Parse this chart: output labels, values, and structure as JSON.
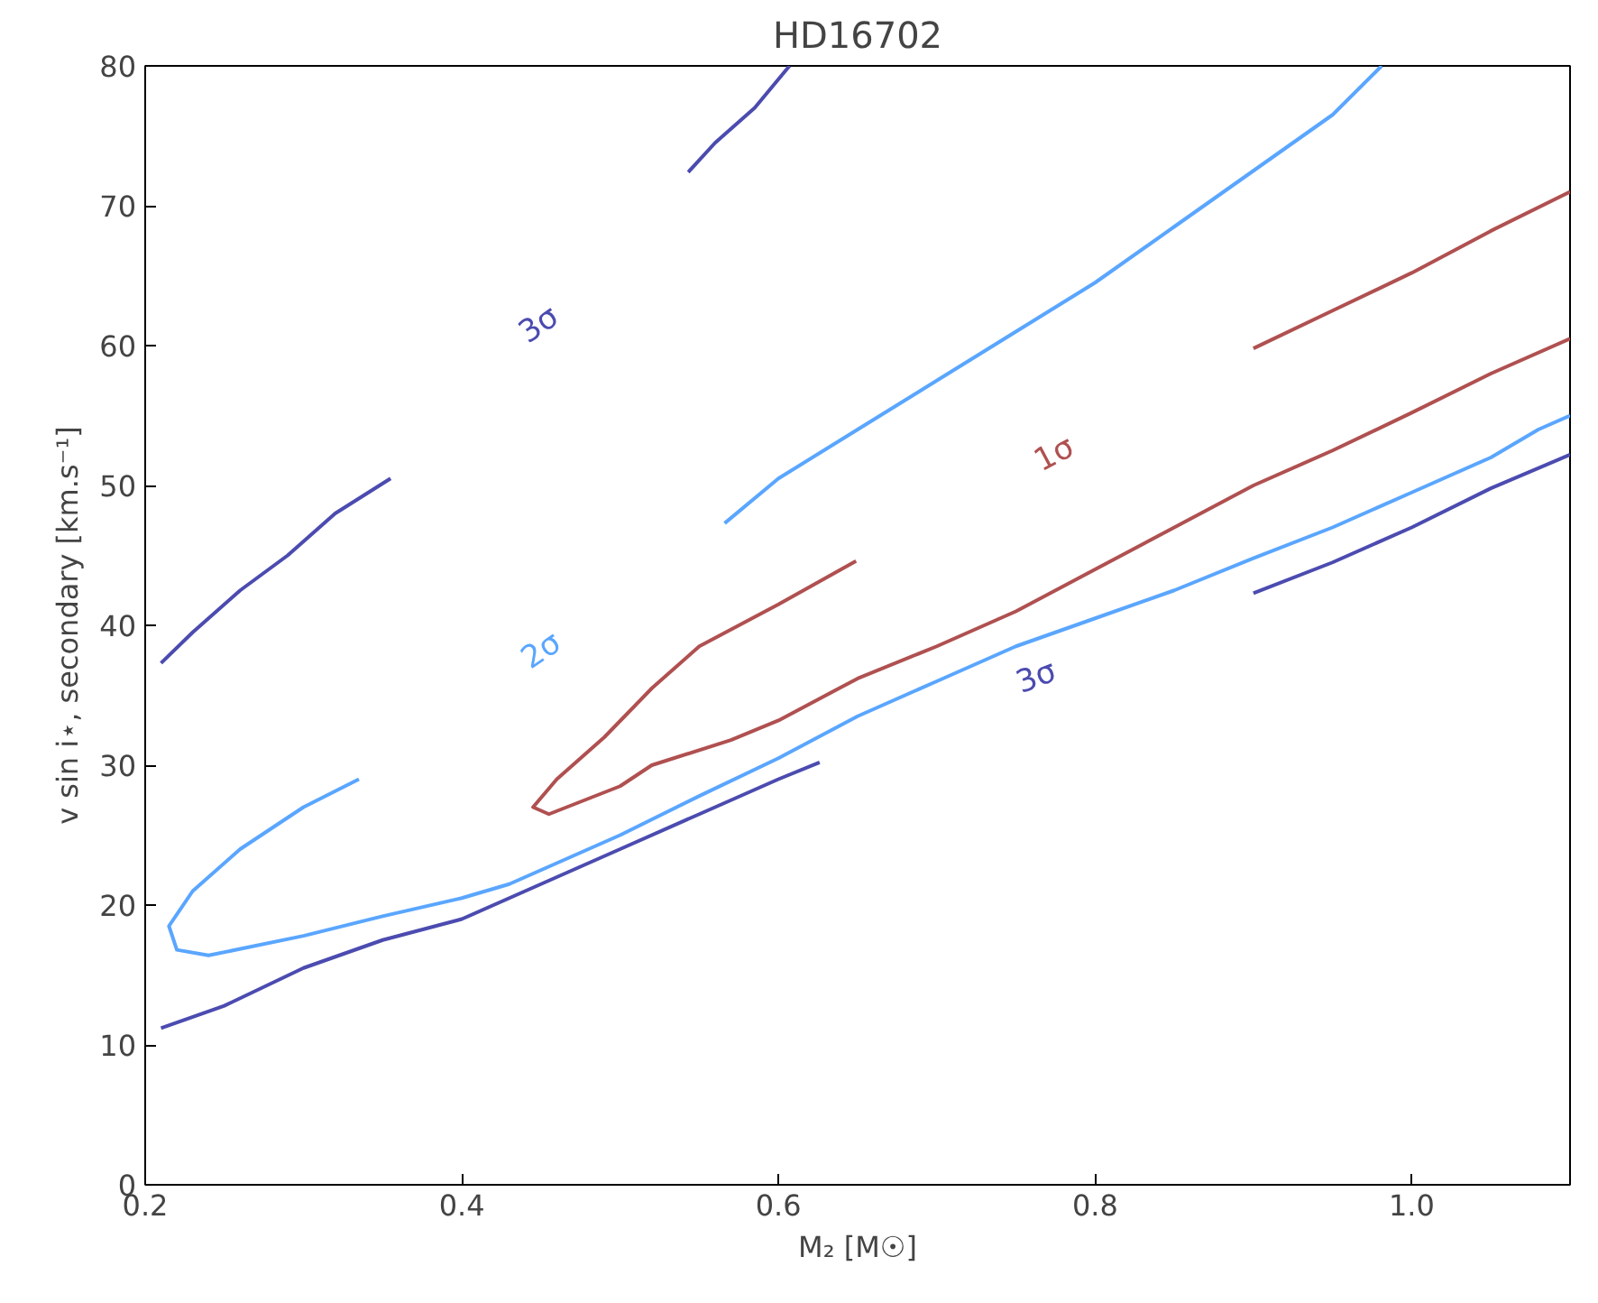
{
  "chart_data": {
    "type": "line",
    "title": "HD16702",
    "xlabel": "M₂ [M☉]",
    "ylabel": "v sin i⋆, secondary [km.s⁻¹]",
    "xlim": [
      0.2,
      1.1
    ],
    "ylim": [
      0,
      80
    ],
    "xticks": [
      0.2,
      0.4,
      0.6,
      {
        "value": 1.0,
        "label": "1.0"
      },
      0.8
    ],
    "yticks": [
      0,
      10,
      20,
      30,
      40,
      50,
      60,
      70,
      80
    ],
    "grid": false,
    "legend": false,
    "marker": "none",
    "line_style": "solid",
    "series": [
      {
        "name": "3σ",
        "color": "#4b4bb0",
        "x": [
          0.21,
          0.23,
          0.26,
          0.29,
          0.32,
          0.355,
          null,
          0.543,
          0.56,
          0.585,
          0.607,
          null,
          0.21,
          0.25,
          0.3,
          0.35,
          0.4,
          0.45,
          0.5,
          0.55,
          0.6,
          0.626,
          null,
          0.9,
          0.95,
          1.0,
          1.05,
          1.1
        ],
        "values": [
          37.3,
          39.5,
          42.5,
          45,
          48,
          50.5,
          null,
          72.4,
          74.5,
          77,
          80,
          null,
          11.2,
          12.8,
          15.5,
          17.5,
          19,
          21.5,
          24,
          26.5,
          29,
          30.2,
          null,
          42.3,
          44.5,
          47,
          49.8,
          52.2
        ]
      },
      {
        "name": "2σ",
        "color": "#5aa6ff",
        "x": [
          0.981,
          0.95,
          0.9,
          0.85,
          0.8,
          0.75,
          0.7,
          0.65,
          0.6,
          0.566,
          null,
          0.335,
          0.3,
          0.26,
          0.23,
          0.215,
          0.22,
          0.24,
          0.3,
          0.35,
          0.4,
          0.43,
          0.5,
          0.55,
          0.6,
          0.65,
          0.7,
          0.75,
          0.8,
          0.85,
          0.9,
          0.95,
          1.0,
          1.05,
          1.08,
          1.1
        ],
        "values": [
          80,
          76.5,
          72.5,
          68.5,
          64.5,
          61,
          57.5,
          54,
          50.5,
          47.3,
          null,
          29,
          27,
          24,
          21,
          18.5,
          16.8,
          16.4,
          17.8,
          19.2,
          20.5,
          21.5,
          25,
          27.8,
          30.5,
          33.5,
          36,
          38.5,
          40.5,
          42.5,
          44.8,
          47,
          49.5,
          52,
          54,
          55
        ]
      },
      {
        "name": "1σ",
        "color": "#b05050",
        "x": [
          1.1,
          1.05,
          1.0,
          0.95,
          0.9,
          null,
          0.649,
          0.6,
          0.55,
          0.52,
          0.49,
          0.46,
          0.445,
          0.455,
          0.5,
          0.52,
          0.57,
          0.6,
          0.65,
          0.7,
          0.75,
          0.8,
          0.85,
          0.9,
          0.95,
          1.0,
          1.05,
          1.1
        ],
        "values": [
          71,
          68.2,
          65.2,
          62.5,
          59.8,
          null,
          44.6,
          41.5,
          38.5,
          35.5,
          32,
          29,
          27,
          26.5,
          28.5,
          30,
          31.8,
          33.2,
          36.2,
          38.5,
          41,
          44,
          47,
          50,
          52.5,
          55.2,
          58,
          60.5
        ]
      }
    ]
  }
}
